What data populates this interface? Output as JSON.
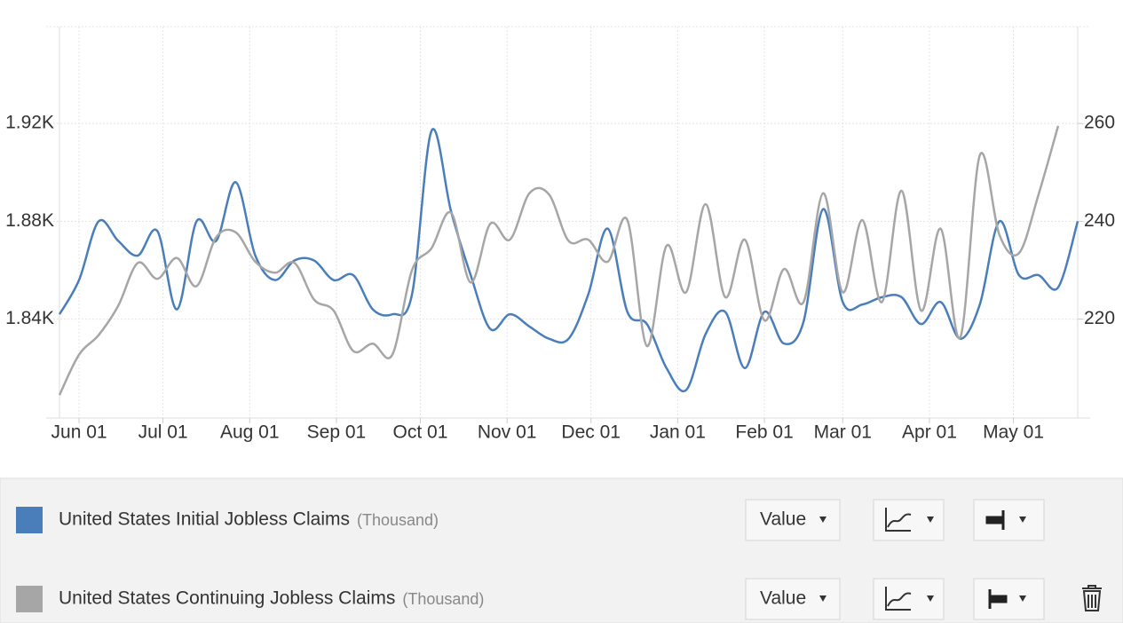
{
  "chart_data": {
    "type": "line",
    "x": [
      -7,
      0,
      7,
      14,
      21,
      28,
      35,
      42,
      49,
      56,
      63,
      70,
      77,
      84,
      91,
      98,
      105,
      112,
      119,
      126,
      133,
      140,
      147,
      154,
      161,
      168,
      175,
      182,
      189,
      196,
      203,
      210,
      217,
      224,
      231,
      238,
      245,
      252,
      259,
      266,
      273,
      280,
      287,
      294,
      301,
      308,
      315,
      322,
      329,
      336,
      343,
      350,
      357
    ],
    "xlim": [
      -7,
      357
    ],
    "xticks": [
      {
        "value": 0,
        "label": "Jun 01"
      },
      {
        "value": 30,
        "label": "Jul 01"
      },
      {
        "value": 61,
        "label": "Aug 01"
      },
      {
        "value": 92,
        "label": "Sep 01"
      },
      {
        "value": 122,
        "label": "Oct 01"
      },
      {
        "value": 153,
        "label": "Nov 01"
      },
      {
        "value": 183,
        "label": "Dec 01"
      },
      {
        "value": 214,
        "label": "Jan 01"
      },
      {
        "value": 245,
        "label": "Feb 01"
      },
      {
        "value": 273,
        "label": "Mar 01"
      },
      {
        "value": 304,
        "label": "Apr 01"
      },
      {
        "value": 334,
        "label": "May 01"
      }
    ],
    "ylim": [
      1799.6,
      1959.6
    ],
    "yticks": [
      {
        "value": 1840,
        "label": "1.84K"
      },
      {
        "value": 1880,
        "label": "1.88K"
      },
      {
        "value": 1920,
        "label": "1.92K"
      }
    ],
    "y2lim": [
      199.8,
      279.8
    ],
    "y2ticks": [
      220,
      240,
      260
    ],
    "grid": true,
    "series": [
      {
        "name": "United States Initial Jobless Claims",
        "unit": "(Thousand)",
        "mode": "Value",
        "color": "#4a7ebb",
        "axis": "y2",
        "values": [
          221,
          228,
          240,
          236,
          233,
          238,
          222,
          240,
          236,
          248,
          233,
          228,
          232,
          232,
          228,
          229,
          222,
          221,
          225,
          258.5,
          242,
          229,
          218,
          221,
          218.5,
          216,
          216,
          225,
          238.5,
          221.5,
          219,
          210,
          205.5,
          217,
          221.5,
          210,
          221.5,
          215,
          219.5,
          242.5,
          223.5,
          223,
          224.5,
          224.5,
          219,
          223.5,
          216,
          223,
          240,
          229,
          229,
          226.5,
          240
        ]
      },
      {
        "name": "United States Continuing Jobless Claims",
        "unit": "(Thousand)",
        "mode": "Value",
        "color": "#a6a6a6",
        "values": [
          1809,
          1825.5,
          1833.5,
          1845.5,
          1863,
          1856.5,
          1865,
          1853.5,
          1873.5,
          1875.5,
          1863.5,
          1859,
          1863,
          1848,
          1843.5,
          1827,
          1830,
          1825.5,
          1860,
          1869,
          1883.5,
          1855,
          1879,
          1872.5,
          1891.5,
          1891,
          1872,
          1872.5,
          1863.5,
          1880.5,
          1829,
          1870,
          1851,
          1887,
          1849,
          1872.5,
          1839.5,
          1860.5,
          1847,
          1891.5,
          1851,
          1880.5,
          1847,
          1892.5,
          1843.5,
          1877,
          1832.5,
          1907,
          1874.5,
          1867,
          1891,
          1919,
          null
        ]
      }
    ]
  }
}
